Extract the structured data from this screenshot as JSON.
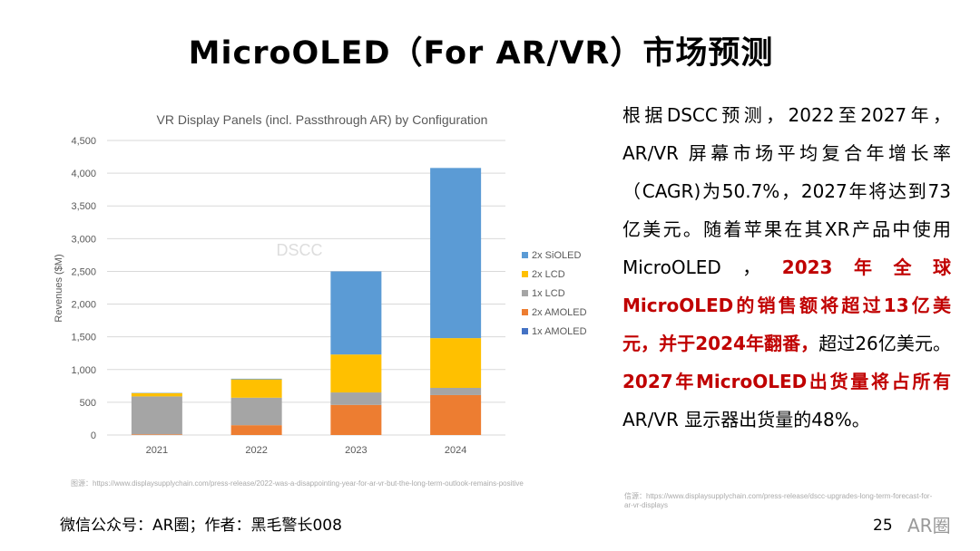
{
  "slide": {
    "title": "MicroOLED（For AR/VR）市场预测",
    "page_number": "25",
    "footer": "微信公众号：AR圈；作者：黑毛警长008",
    "logo": "AR圈",
    "body": [
      {
        "text": "根据DSCC预测，2022至2027年，AR/VR 屏幕市场平均复合年增长率（CAGR)为50.7%，2027年将达到73亿美元。随着苹果在其XR产品中使用MicroOLED，",
        "red": false
      },
      {
        "text": "2023年全球MicroOLED的销售额将超过13亿美元，并于2024年翻番，",
        "red": true
      },
      {
        "text": "超过26亿美元。",
        "red": false
      },
      {
        "text": "2027年MicroOLED出货量将占所有",
        "red": true
      },
      {
        "text": "AR/VR 显示器出货量的48%。",
        "red": false
      }
    ],
    "source_left": "图源：https://www.displaysupplychain.com/press-release/2022-was-a-disappointing-year-for-ar-vr-but-the-long-term-outlook-remains-positive",
    "source_right": "信源：https://www.displaysupplychain.com/press-release/dscc-upgrades-long-term-forecast-for-ar-vr-displays"
  },
  "chart_data": {
    "type": "bar",
    "stacked": true,
    "title": "VR Display Panels (incl. Passthrough AR) by Configuration",
    "xlabel": "",
    "ylabel": "Revenues ($M)",
    "ylim": [
      0,
      4500
    ],
    "yticks": [
      "0",
      "500",
      "1,000",
      "1,500",
      "2,000",
      "2,500",
      "3,000",
      "3,500",
      "4,000",
      "4,500"
    ],
    "categories": [
      "2021",
      "2022",
      "2023",
      "2024"
    ],
    "grid": true,
    "legend": "right",
    "watermark": "DSCC",
    "series": [
      {
        "name": "1x AMOLED",
        "color": "#4472c4",
        "values": [
          0,
          0,
          0,
          0
        ]
      },
      {
        "name": "2x AMOLED",
        "color": "#ed7d31",
        "values": [
          10,
          150,
          460,
          610
        ]
      },
      {
        "name": "1x LCD",
        "color": "#a5a5a5",
        "values": [
          580,
          420,
          190,
          110
        ]
      },
      {
        "name": "2x LCD",
        "color": "#ffc000",
        "values": [
          50,
          280,
          580,
          760
        ]
      },
      {
        "name": "2x SiOLED",
        "color": "#5b9bd5",
        "values": [
          5,
          10,
          1270,
          2600
        ]
      }
    ]
  }
}
